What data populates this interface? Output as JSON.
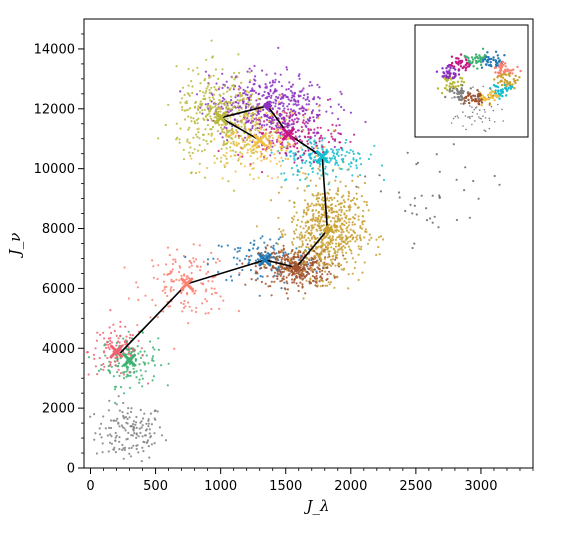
{
  "chart_data": {
    "type": "scatter",
    "title": "",
    "xlabel": "J_λ",
    "ylabel": "J_ν",
    "xlim": [
      -50,
      3400
    ],
    "ylim": [
      0,
      15000
    ],
    "x_ticks": [
      0,
      500,
      1000,
      1500,
      2000,
      2500,
      3000
    ],
    "y_ticks": [
      0,
      2000,
      4000,
      6000,
      8000,
      10000,
      12000,
      14000
    ],
    "grid": false,
    "legend": "none",
    "clusters": [
      {
        "color": "#808080",
        "center": [
          300,
          1200
        ],
        "spread": [
          220,
          800
        ],
        "n": 150,
        "marker": null
      },
      {
        "color": "#3cb371",
        "center": [
          300,
          3600
        ],
        "spread": [
          180,
          700
        ],
        "n": 150,
        "marker": "x"
      },
      {
        "color": "#f06070",
        "center": [
          200,
          3900
        ],
        "spread": [
          180,
          700
        ],
        "n": 110,
        "marker": "x"
      },
      {
        "color": "#fa8072",
        "center": [
          740,
          6150
        ],
        "spread": [
          280,
          900
        ],
        "n": 150,
        "marker": "x"
      },
      {
        "color": "#1f77b4",
        "center": [
          1340,
          6950
        ],
        "spread": [
          350,
          700
        ],
        "n": 130,
        "marker": "x"
      },
      {
        "color": "#a0522d",
        "center": [
          1580,
          6700
        ],
        "spread": [
          230,
          550
        ],
        "n": 380,
        "marker": "diamond"
      },
      {
        "color": "#c8a030",
        "center": [
          1820,
          7950
        ],
        "spread": [
          240,
          1300
        ],
        "n": 650,
        "marker": "diamond"
      },
      {
        "color": "#17becf",
        "center": [
          1780,
          10400
        ],
        "spread": [
          280,
          600
        ],
        "n": 200,
        "marker": "x"
      },
      {
        "color": "#c71585",
        "center": [
          1520,
          11150
        ],
        "spread": [
          320,
          700
        ],
        "n": 200,
        "marker": "x"
      },
      {
        "color": "#8b2fbf",
        "center": [
          1360,
          12100
        ],
        "spread": [
          380,
          900
        ],
        "n": 480,
        "marker": "diamond"
      },
      {
        "color": "#b8b83a",
        "center": [
          1000,
          11700
        ],
        "spread": [
          280,
          1300
        ],
        "n": 380,
        "marker": "x"
      },
      {
        "color": "#f0c040",
        "center": [
          1300,
          10950
        ],
        "spread": [
          320,
          900
        ],
        "n": 220,
        "marker": "x"
      },
      {
        "color": "#6a6a6a",
        "center": [
          2600,
          9000
        ],
        "spread": [
          400,
          1500
        ],
        "n": 40,
        "marker": null
      }
    ],
    "path": [
      [
        230,
        3850
      ],
      [
        740,
        6150
      ],
      [
        1340,
        6950
      ],
      [
        1580,
        6700
      ],
      [
        1820,
        7950
      ],
      [
        1780,
        10400
      ],
      [
        1520,
        11150
      ],
      [
        1360,
        12100
      ],
      [
        1000,
        11700
      ],
      [
        1300,
        10950
      ]
    ],
    "inset": {
      "type": "thumbnail",
      "ring_colors": [
        "#b8b83a",
        "#8b2fbf",
        "#c71585",
        "#3cb371",
        "#1f77b4",
        "#fa8072",
        "#c8a030",
        "#17becf",
        "#f0c040",
        "#a0522d",
        "#808080"
      ]
    }
  }
}
